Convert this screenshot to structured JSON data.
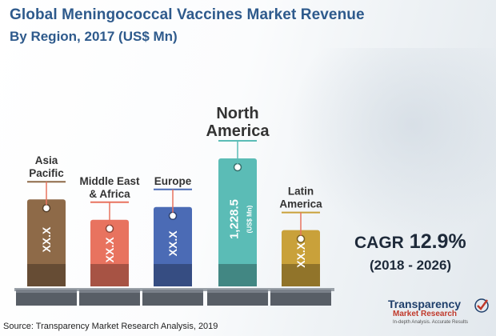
{
  "header": {
    "title": "Global Meningococcal Vaccines Market Revenue",
    "subtitle": "By Region, 2017 (US$ Mn)"
  },
  "chart_data": {
    "type": "bar",
    "title": "Global Meningococcal Vaccines Market Revenue",
    "subtitle": "By Region, 2017 (US$ Mn)",
    "unit": "US$ Mn",
    "categories": [
      {
        "lines": [
          "Asia",
          "Pacific"
        ],
        "label": "Asia Pacific",
        "value_text": "XX.X",
        "relative_height": 0.68,
        "color": "#8e6a48",
        "highlight": false
      },
      {
        "lines": [
          "Middle East",
          "& Africa"
        ],
        "label": "Middle East & Africa",
        "value_text": "XX.X",
        "relative_height": 0.52,
        "color": "#e8735f",
        "highlight": false
      },
      {
        "lines": [
          "Europe"
        ],
        "label": "Europe",
        "value_text": "XX.X",
        "relative_height": 0.62,
        "color": "#4b6bb5",
        "highlight": false
      },
      {
        "lines": [
          "North",
          "America"
        ],
        "label": "North America",
        "value_text": "1,228.5",
        "value_unit": "(US$ Mn)",
        "value": 1228.5,
        "relative_height": 1.0,
        "color": "#5bbcb6",
        "highlight": true
      },
      {
        "lines": [
          "Latin",
          "America"
        ],
        "label": "Latin America",
        "value_text": "XX.X",
        "relative_height": 0.44,
        "color": "#c9a13a",
        "highlight": false
      }
    ]
  },
  "cagr": {
    "label": "CAGR",
    "value": "12.9%",
    "period": "(2018 - 2026)"
  },
  "logo": {
    "name": "Transparency",
    "sub": "Market Research",
    "tagline": "In-depth Analysis. Accurate Results"
  },
  "source": "Source: Transparency Market Research Analysis, 2019",
  "colors": {
    "title": "#2e5a8c",
    "highlight_label": "#c9a13a",
    "base": "#585e66",
    "connector": "#e8735f"
  }
}
